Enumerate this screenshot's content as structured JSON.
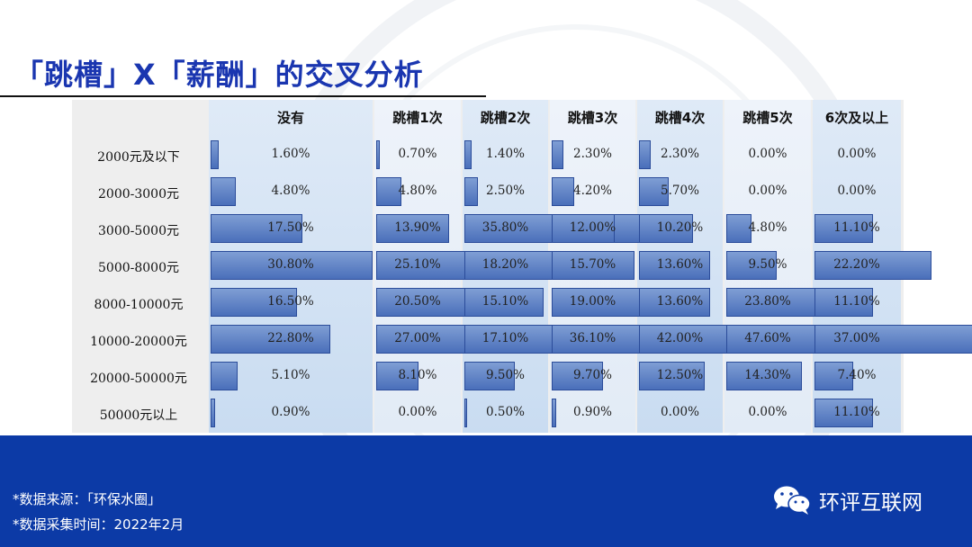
{
  "title": "「跳槽」X「薪酬」的交叉分析",
  "colors": {
    "title": "#1a36b0",
    "bar": "#4a6fba",
    "footer": "#0c3aa6"
  },
  "chart_data": {
    "type": "table",
    "columns": [
      "没有",
      "跳槽1次",
      "跳槽2次",
      "跳槽3次",
      "跳槽4次",
      "跳槽5次",
      "6次及以上"
    ],
    "rows": [
      "2000元及以下",
      "2000-3000元",
      "3000-5000元",
      "5000-8000元",
      "8000-10000元",
      "10000-20000元",
      "20000-50000元",
      "50000元以上"
    ],
    "values": [
      [
        1.6,
        0.7,
        1.4,
        2.3,
        2.3,
        0.0,
        0.0
      ],
      [
        4.8,
        4.8,
        2.5,
        4.2,
        5.7,
        0.0,
        0.0
      ],
      [
        17.5,
        13.9,
        35.8,
        12.0,
        10.2,
        4.8,
        11.1
      ],
      [
        30.8,
        25.1,
        18.2,
        15.7,
        13.6,
        9.5,
        22.2
      ],
      [
        16.5,
        20.5,
        15.1,
        19.0,
        13.6,
        23.8,
        11.1
      ],
      [
        22.8,
        27.0,
        17.1,
        36.1,
        42.0,
        47.6,
        37.0
      ],
      [
        5.1,
        8.1,
        9.5,
        9.7,
        12.5,
        14.3,
        7.4
      ],
      [
        0.9,
        0.0,
        0.5,
        0.9,
        0.0,
        0.0,
        11.1
      ]
    ],
    "labels": [
      [
        "1.60%",
        "0.70%",
        "1.40%",
        "2.30%",
        "2.30%",
        "0.00%",
        "0.00%"
      ],
      [
        "4.80%",
        "4.80%",
        "2.50%",
        "4.20%",
        "5.70%",
        "0.00%",
        "0.00%"
      ],
      [
        "17.50%",
        "13.90%",
        "35.80%",
        "12.00%",
        "10.20%",
        "4.80%",
        "11.10%"
      ],
      [
        "30.80%",
        "25.10%",
        "18.20%",
        "15.70%",
        "13.60%",
        "9.50%",
        "22.20%"
      ],
      [
        "16.50%",
        "20.50%",
        "15.10%",
        "19.00%",
        "13.60%",
        "23.80%",
        "11.10%"
      ],
      [
        "22.80%",
        "27.00%",
        "17.10%",
        "36.10%",
        "42.00%",
        "47.60%",
        "37.00%"
      ],
      [
        "5.10%",
        "8.10%",
        "9.50%",
        "9.70%",
        "12.50%",
        "14.30%",
        "7.40%"
      ],
      [
        "0.90%",
        "0.00%",
        "0.50%",
        "0.90%",
        "0.00%",
        "0.00%",
        "11.10%"
      ]
    ]
  },
  "footer": {
    "source": "*数据来源：「环保水圈」",
    "collected": "*数据采集时间：2022年2月",
    "brand": "环评互联网",
    "brand_icon": "wechat-icon"
  }
}
